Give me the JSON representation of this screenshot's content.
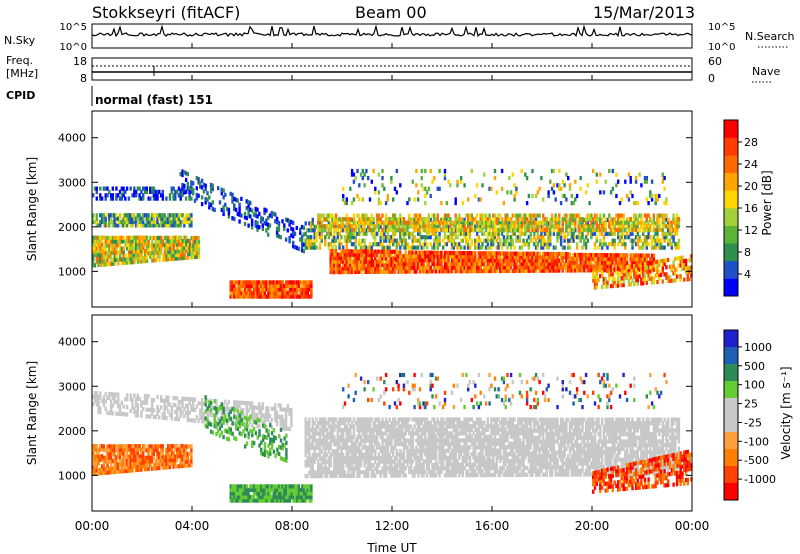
{
  "header": {
    "station": "Stokkseyri (fitACF)",
    "beam": "Beam 00",
    "date": "15/Mar/2013"
  },
  "left_labels": {
    "nsky": "N.Sky",
    "freq": "Freq.",
    "freq_unit": "[MHz]",
    "cpid": "CPID"
  },
  "right_labels": {
    "nsearch": "N.Search",
    "nave": "Nave"
  },
  "cpid_text": "normal (fast) 151",
  "time_axis": {
    "label": "Time UT"
  },
  "colors": {
    "power": [
      "#0000ff",
      "#1f50c8",
      "#2f8f4f",
      "#5cb33a",
      "#a3d13c",
      "#ffd700",
      "#ffa500",
      "#ff6a00",
      "#ff3b00",
      "#ff0000"
    ],
    "velocity": [
      "#ff0000",
      "#ff4000",
      "#ff8000",
      "#ffa040",
      "#c8c8c8",
      "#c8c8c8",
      "#66cc33",
      "#2e8b57",
      "#1f5fb4",
      "#2020cc"
    ]
  },
  "chart_data": [
    {
      "type": "line",
      "title": "N.Sky / N.Search",
      "y_ticks": [
        "10^5",
        "10^0"
      ],
      "right_ticks": [
        "10^5",
        "10^0"
      ],
      "x": [
        "00:00",
        "04:00",
        "08:00",
        "12:00",
        "16:00",
        "20:00",
        "00:00"
      ],
      "ylim": [
        0,
        5
      ]
    },
    {
      "type": "line",
      "title": "Freq. / Nave",
      "y_ticks": [
        "18",
        "8"
      ],
      "right_ticks": [
        "60",
        "0"
      ],
      "ylim": [
        8,
        18
      ]
    },
    {
      "type": "heatmap",
      "title": "Power",
      "xlabel": "Time UT",
      "ylabel": "Slant Range [km]",
      "x_ticks": [
        "00:00",
        "04:00",
        "08:00",
        "12:00",
        "16:00",
        "20:00",
        "00:00"
      ],
      "y_ticks": [
        1000,
        2000,
        3000,
        4000
      ],
      "xlim": [
        0,
        24
      ],
      "ylim": [
        200,
        4600
      ],
      "colorbar": {
        "label": "Power [dB]",
        "ticks": [
          4,
          8,
          12,
          16,
          20,
          24,
          28
        ],
        "range": [
          0,
          32
        ]
      }
    },
    {
      "type": "heatmap",
      "title": "Velocity",
      "xlabel": "Time UT",
      "ylabel": "Slant Range [km]",
      "x_ticks": [
        "00:00",
        "04:00",
        "08:00",
        "12:00",
        "16:00",
        "20:00",
        "00:00"
      ],
      "y_ticks": [
        1000,
        2000,
        3000,
        4000
      ],
      "xlim": [
        0,
        24
      ],
      "ylim": [
        200,
        4600
      ],
      "colorbar": {
        "label": "Velocity [m s⁻¹]",
        "ticks": [
          "1000",
          "500",
          "100",
          "25",
          "-25",
          "-100",
          "-500",
          "-1000"
        ]
      }
    }
  ]
}
